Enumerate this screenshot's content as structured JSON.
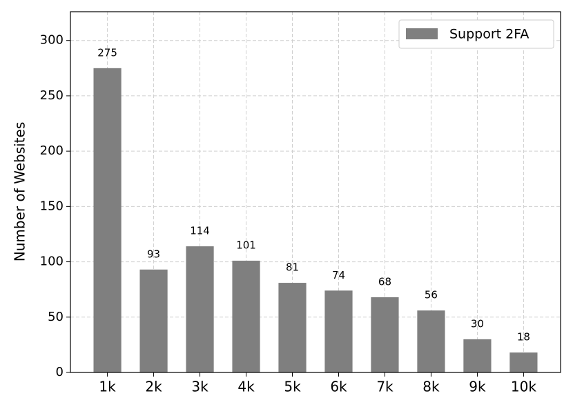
{
  "chart_data": {
    "type": "bar",
    "y_label": "Number of Websites",
    "categories": [
      "1k",
      "2k",
      "3k",
      "4k",
      "5k",
      "6k",
      "7k",
      "8k",
      "9k",
      "10k"
    ],
    "series": [
      {
        "name": "Support 2FA",
        "color": "#7f7f7f",
        "values": [
          275,
          93,
          114,
          101,
          81,
          74,
          68,
          56,
          30,
          18
        ]
      }
    ],
    "ylim": [
      0,
      326
    ],
    "yticks": [
      0,
      50,
      100,
      150,
      200,
      250,
      300
    ],
    "grid": true,
    "legend": "upper right"
  }
}
